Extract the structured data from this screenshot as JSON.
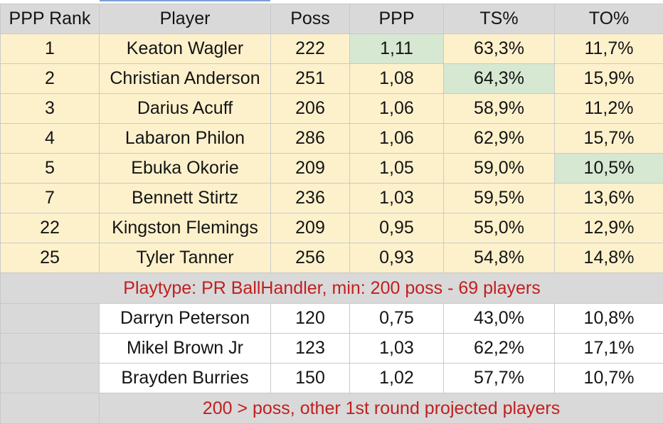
{
  "columns": [
    "PPP Rank",
    "Player",
    "Poss",
    "PPP",
    "TS%",
    "TO%"
  ],
  "rows": [
    {
      "rank": "1",
      "player": "Keaton Wagler",
      "poss": "222",
      "ppp": "1,11",
      "ts": "63,3%",
      "to": "11,7%"
    },
    {
      "rank": "2",
      "player": "Christian Anderson",
      "poss": "251",
      "ppp": "1,08",
      "ts": "64,3%",
      "to": "15,9%"
    },
    {
      "rank": "3",
      "player": "Darius Acuff",
      "poss": "206",
      "ppp": "1,06",
      "ts": "58,9%",
      "to": "11,2%"
    },
    {
      "rank": "4",
      "player": "Labaron Philon",
      "poss": "286",
      "ppp": "1,06",
      "ts": "62,9%",
      "to": "15,7%"
    },
    {
      "rank": "5",
      "player": "Ebuka Okorie",
      "poss": "209",
      "ppp": "1,05",
      "ts": "59,0%",
      "to": "10,5%"
    },
    {
      "rank": "7",
      "player": "Bennett Stirtz",
      "poss": "236",
      "ppp": "1,03",
      "ts": "59,5%",
      "to": "13,6%"
    },
    {
      "rank": "22",
      "player": "Kingston Flemings",
      "poss": "209",
      "ppp": "0,95",
      "ts": "55,0%",
      "to": "12,9%"
    },
    {
      "rank": "25",
      "player": "Tyler Tanner",
      "poss": "256",
      "ppp": "0,93",
      "ts": "54,8%",
      "to": "14,8%"
    }
  ],
  "note_main": "Playtype: PR BallHandler, min: 200 poss - 69 players",
  "extra_rows": [
    {
      "player": "Darryn Peterson",
      "poss": "120",
      "ppp": "0,75",
      "ts": "43,0%",
      "to": "10,8%"
    },
    {
      "player": "Mikel Brown Jr",
      "poss": "123",
      "ppp": "1,03",
      "ts": "62,2%",
      "to": "17,1%"
    },
    {
      "player": "Brayden Burries",
      "poss": "150",
      "ppp": "1,02",
      "ts": "57,7%",
      "to": "10,7%"
    }
  ],
  "note_extra": "200 > poss, other 1st round projected players",
  "colors": {
    "header_bg": "#d9d9d9",
    "row_bg": "#fdf1cc",
    "best_bg": "#d6e7d2",
    "note_text": "#c11f1f"
  }
}
